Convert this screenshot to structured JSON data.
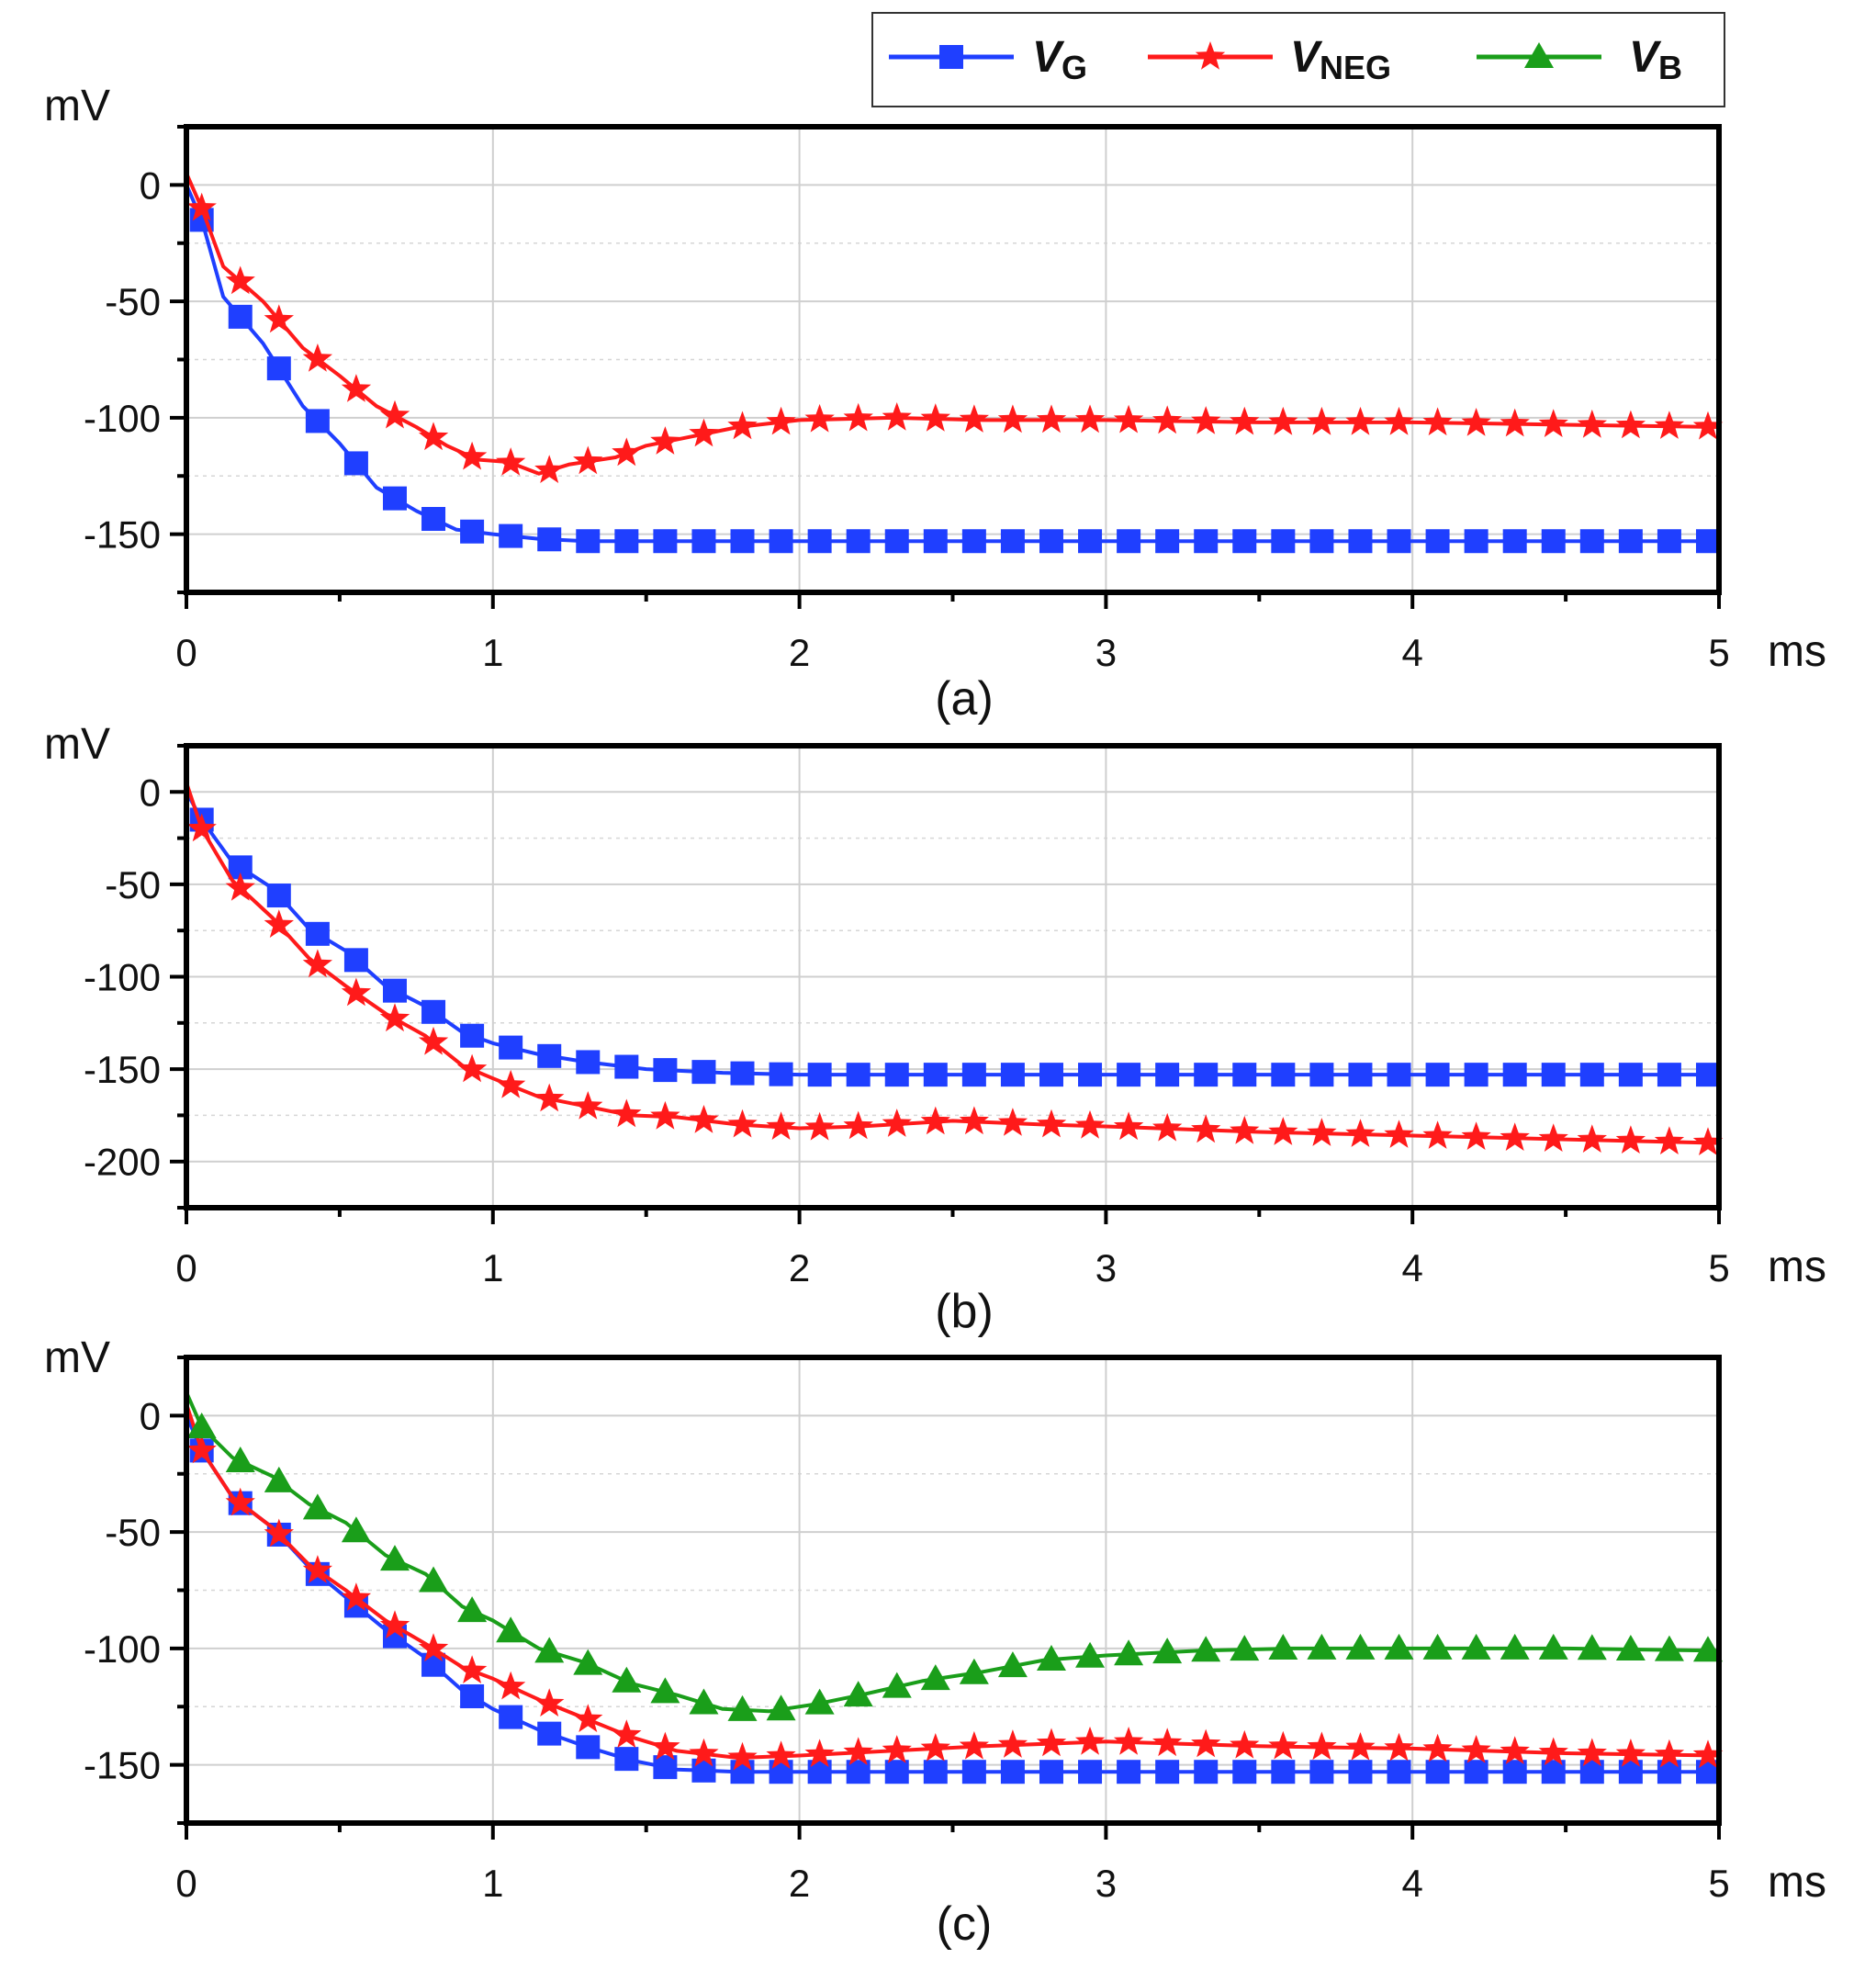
{
  "chart_data": {
    "type": "line",
    "x_unit_label": "ms",
    "y_unit_label": "mV",
    "colors": {
      "VG": "#1f3fff",
      "VNEG": "#ff1a1a",
      "VB": "#1a9e1a"
    },
    "legend": {
      "position": "top-right",
      "entries": [
        {
          "key": "VG",
          "main": "V",
          "sub": "G",
          "marker": "square"
        },
        {
          "key": "VNEG",
          "main": "V",
          "sub": "NEG",
          "marker": "star"
        },
        {
          "key": "VB",
          "main": "V",
          "sub": "B",
          "marker": "triangle"
        }
      ]
    },
    "x_ticks": [
      "0",
      "1",
      "2",
      "3",
      "4",
      "5"
    ],
    "panels": [
      {
        "label": "(a)",
        "xlim": [
          0,
          5
        ],
        "ylim": [
          -175,
          25
        ],
        "y_ticks": [
          0,
          -50,
          -100,
          -150
        ],
        "y_tick_labels": [
          "0",
          "-50",
          "-100",
          "-150"
        ],
        "series": [
          {
            "key": "VG",
            "name": "VG",
            "points": [
              [
                0,
                0
              ],
              [
                0.05,
                -15
              ],
              [
                0.12,
                -48
              ],
              [
                0.25,
                -68
              ],
              [
                0.38,
                -95
              ],
              [
                0.5,
                -111
              ],
              [
                0.62,
                -130
              ],
              [
                0.75,
                -140
              ],
              [
                0.88,
                -148
              ],
              [
                1.0,
                -150
              ],
              [
                1.15,
                -152
              ],
              [
                1.3,
                -153
              ],
              [
                1.5,
                -153
              ],
              [
                2.0,
                -153
              ],
              [
                3.0,
                -153
              ],
              [
                4.0,
                -153
              ],
              [
                5.0,
                -153
              ]
            ]
          },
          {
            "key": "VNEG",
            "name": "VNEG",
            "points": [
              [
                0,
                5
              ],
              [
                0.05,
                -10
              ],
              [
                0.12,
                -35
              ],
              [
                0.25,
                -50
              ],
              [
                0.38,
                -70
              ],
              [
                0.5,
                -82
              ],
              [
                0.62,
                -95
              ],
              [
                0.75,
                -104
              ],
              [
                0.85,
                -112
              ],
              [
                0.95,
                -118
              ],
              [
                1.05,
                -119
              ],
              [
                1.15,
                -124
              ],
              [
                1.25,
                -120
              ],
              [
                1.4,
                -117
              ],
              [
                1.5,
                -112
              ],
              [
                1.65,
                -108
              ],
              [
                1.8,
                -104
              ],
              [
                2.0,
                -101
              ],
              [
                2.3,
                -100
              ],
              [
                2.6,
                -101
              ],
              [
                3.0,
                -101
              ],
              [
                3.5,
                -102
              ],
              [
                4.0,
                -102
              ],
              [
                4.5,
                -103
              ],
              [
                5.0,
                -104
              ]
            ]
          }
        ]
      },
      {
        "label": "(b)",
        "xlim": [
          0,
          5
        ],
        "ylim": [
          -225,
          25
        ],
        "y_ticks": [
          0,
          -50,
          -100,
          -150,
          -200
        ],
        "y_tick_labels": [
          "0",
          "-50",
          "-100",
          "-150",
          "-200"
        ],
        "series": [
          {
            "key": "VG",
            "name": "VG",
            "points": [
              [
                0,
                0
              ],
              [
                0.05,
                -15
              ],
              [
                0.15,
                -38
              ],
              [
                0.28,
                -52
              ],
              [
                0.4,
                -74
              ],
              [
                0.52,
                -86
              ],
              [
                0.65,
                -105
              ],
              [
                0.78,
                -116
              ],
              [
                0.9,
                -130
              ],
              [
                1.0,
                -136
              ],
              [
                1.15,
                -142
              ],
              [
                1.3,
                -146
              ],
              [
                1.5,
                -150
              ],
              [
                1.75,
                -152
              ],
              [
                2.0,
                -153
              ],
              [
                3.0,
                -153
              ],
              [
                4.0,
                -153
              ],
              [
                5.0,
                -153
              ]
            ]
          },
          {
            "key": "VNEG",
            "name": "VNEG",
            "points": [
              [
                0,
                5
              ],
              [
                0.05,
                -20
              ],
              [
                0.15,
                -48
              ],
              [
                0.28,
                -68
              ],
              [
                0.4,
                -90
              ],
              [
                0.52,
                -105
              ],
              [
                0.65,
                -120
              ],
              [
                0.78,
                -132
              ],
              [
                0.9,
                -148
              ],
              [
                1.0,
                -155
              ],
              [
                1.15,
                -165
              ],
              [
                1.3,
                -170
              ],
              [
                1.45,
                -175
              ],
              [
                1.6,
                -176
              ],
              [
                1.8,
                -180
              ],
              [
                2.0,
                -182
              ],
              [
                2.2,
                -181
              ],
              [
                2.5,
                -178
              ],
              [
                2.8,
                -180
              ],
              [
                3.0,
                -181
              ],
              [
                3.5,
                -184
              ],
              [
                4.0,
                -186
              ],
              [
                4.5,
                -188
              ],
              [
                5.0,
                -190
              ]
            ]
          }
        ]
      },
      {
        "label": "(c)",
        "xlim": [
          0,
          5
        ],
        "ylim": [
          -175,
          25
        ],
        "y_ticks": [
          0,
          -50,
          -100,
          -150
        ],
        "y_tick_labels": [
          "0",
          "-50",
          "-100",
          "-150"
        ],
        "series": [
          {
            "key": "VG",
            "name": "VG",
            "points": [
              [
                0,
                0
              ],
              [
                0.05,
                -15
              ],
              [
                0.15,
                -35
              ],
              [
                0.28,
                -48
              ],
              [
                0.4,
                -65
              ],
              [
                0.52,
                -78
              ],
              [
                0.65,
                -92
              ],
              [
                0.78,
                -104
              ],
              [
                0.9,
                -118
              ],
              [
                1.0,
                -126
              ],
              [
                1.15,
                -135
              ],
              [
                1.3,
                -142
              ],
              [
                1.45,
                -148
              ],
              [
                1.6,
                -152
              ],
              [
                1.8,
                -153
              ],
              [
                2.0,
                -153
              ],
              [
                3.0,
                -153
              ],
              [
                4.0,
                -153
              ],
              [
                5.0,
                -153
              ]
            ]
          },
          {
            "key": "VNEG",
            "name": "VNEG",
            "points": [
              [
                0,
                5
              ],
              [
                0.05,
                -15
              ],
              [
                0.15,
                -35
              ],
              [
                0.28,
                -48
              ],
              [
                0.4,
                -64
              ],
              [
                0.52,
                -75
              ],
              [
                0.65,
                -88
              ],
              [
                0.78,
                -98
              ],
              [
                0.9,
                -108
              ],
              [
                1.0,
                -113
              ],
              [
                1.15,
                -122
              ],
              [
                1.3,
                -130
              ],
              [
                1.45,
                -138
              ],
              [
                1.6,
                -144
              ],
              [
                1.8,
                -147
              ],
              [
                2.0,
                -146
              ],
              [
                2.3,
                -144
              ],
              [
                2.6,
                -142
              ],
              [
                3.0,
                -140
              ],
              [
                3.5,
                -142
              ],
              [
                4.0,
                -143
              ],
              [
                4.5,
                -145
              ],
              [
                5.0,
                -146
              ]
            ]
          },
          {
            "key": "VB",
            "name": "VB",
            "points": [
              [
                0,
                10
              ],
              [
                0.05,
                -5
              ],
              [
                0.15,
                -18
              ],
              [
                0.28,
                -26
              ],
              [
                0.4,
                -38
              ],
              [
                0.52,
                -46
              ],
              [
                0.65,
                -60
              ],
              [
                0.78,
                -68
              ],
              [
                0.9,
                -82
              ],
              [
                1.0,
                -88
              ],
              [
                1.15,
                -100
              ],
              [
                1.3,
                -106
              ],
              [
                1.45,
                -115
              ],
              [
                1.6,
                -120
              ],
              [
                1.75,
                -126
              ],
              [
                1.9,
                -127
              ],
              [
                2.05,
                -124
              ],
              [
                2.2,
                -120
              ],
              [
                2.4,
                -114
              ],
              [
                2.6,
                -110
              ],
              [
                2.8,
                -105
              ],
              [
                3.0,
                -103
              ],
              [
                3.3,
                -101
              ],
              [
                3.6,
                -100
              ],
              [
                4.0,
                -100
              ],
              [
                4.5,
                -100
              ],
              [
                5.0,
                -101
              ]
            ]
          }
        ]
      }
    ]
  }
}
